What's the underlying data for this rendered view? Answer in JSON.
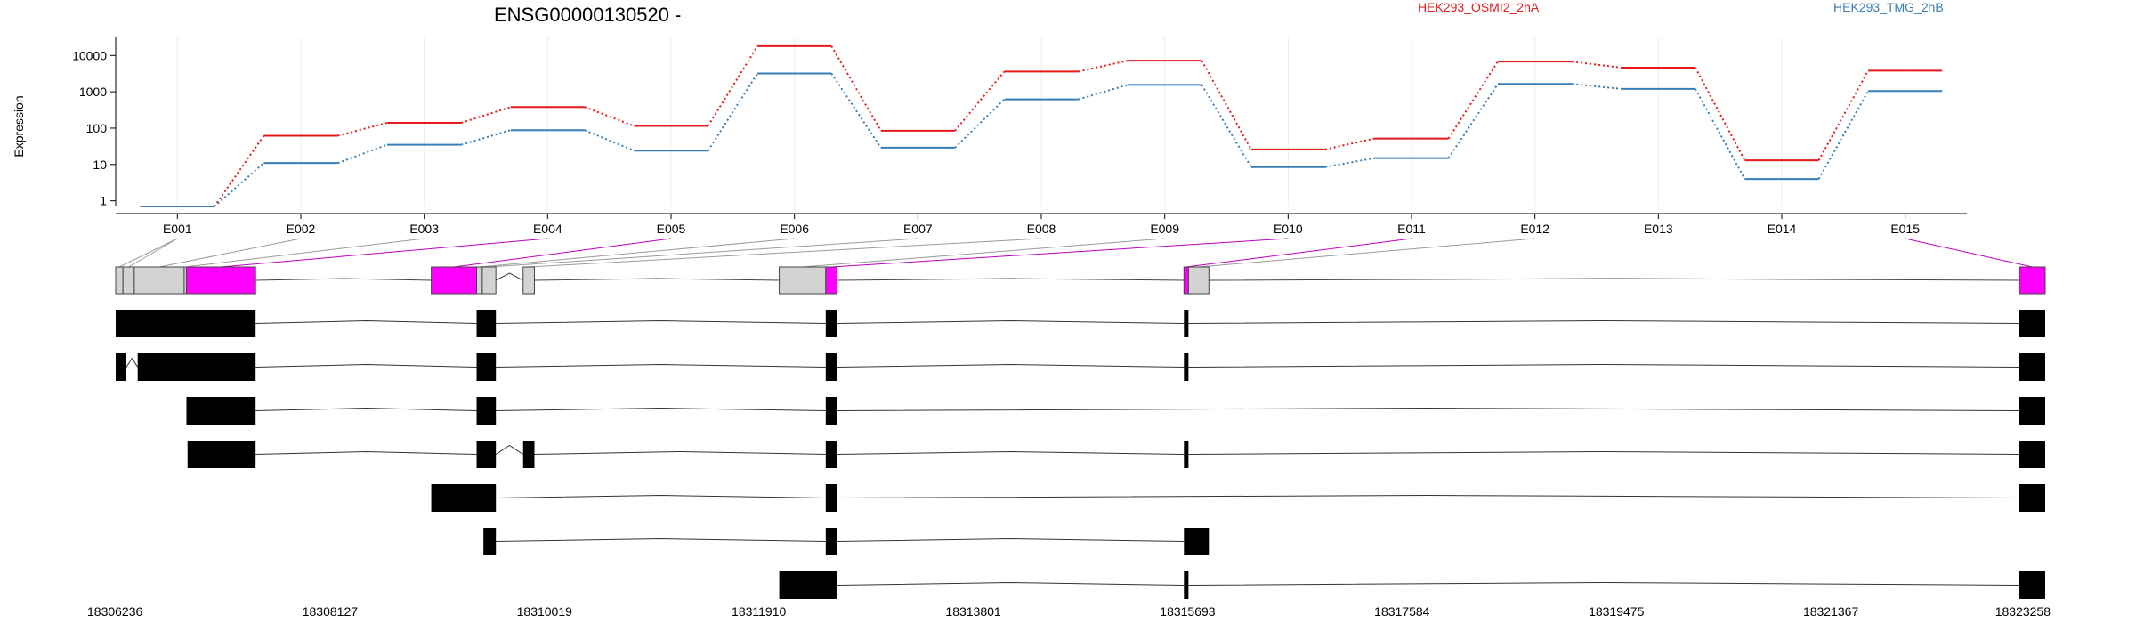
{
  "chart_data": {
    "type": "line",
    "title": "ENSG00000130520 -",
    "ylabel": "Expression",
    "yscale": "log",
    "ylim": [
      0.7,
      25000
    ],
    "yticks": [
      1,
      10,
      100,
      1000,
      10000
    ],
    "ytick_labels": [
      "1",
      "10",
      "100",
      "1000",
      "10000"
    ],
    "grid": "vertical",
    "legend_placement": "top-right",
    "categories": [
      "E001",
      "E002",
      "E003",
      "E004",
      "E005",
      "E006",
      "E007",
      "E008",
      "E009",
      "E010",
      "E011",
      "E012",
      "E013",
      "E014",
      "E015"
    ],
    "series": [
      {
        "name": "HEK293_OSMI2_2hA",
        "color": "#e41a1c",
        "values": [
          0.7,
          62,
          140,
          380,
          115,
          18000,
          85,
          3600,
          7200,
          26,
          52,
          6800,
          4600,
          13,
          3800
        ]
      },
      {
        "name": "HEK293_TMG_2hB",
        "color": "#377eb8",
        "values": [
          0.7,
          11,
          35,
          88,
          24,
          3200,
          29,
          620,
          1550,
          8.5,
          15,
          1650,
          1200,
          4,
          1050
        ]
      }
    ],
    "genome_axis_labels": [
      "18306236",
      "18308127",
      "18310019",
      "18311910",
      "18313801",
      "18315693",
      "18317584",
      "18319475",
      "18321367",
      "18323258"
    ],
    "gene_model": {
      "highlight_color": "#ff00ff",
      "exon_color": "#d3d3d3",
      "transcript_color": "#000000",
      "exon_bins": [
        [
          18306236,
          18306300
        ],
        [
          18306300,
          18306400
        ],
        [
          18306400,
          18306840
        ],
        [
          18306840,
          18306860
        ],
        [
          18306860,
          18307470
        ],
        [
          18309020,
          18309420
        ],
        [
          18309420,
          18309470
        ],
        [
          18309470,
          18309590
        ],
        [
          18309830,
          18309930
        ],
        [
          18312090,
          18312500
        ],
        [
          18312500,
          18312600
        ],
        [
          18315660,
          18315700
        ],
        [
          18315700,
          18315880
        ],
        [
          18323030,
          18323258
        ]
      ],
      "highlighted_exons": [
        4,
        5,
        10,
        11,
        13
      ],
      "exon_link_ids": [
        "E001",
        "E001",
        "E002",
        "E003",
        "E004",
        "E005",
        "E006",
        "E007",
        "E008",
        "E009",
        "E010",
        "E011",
        "E012",
        "E015"
      ],
      "transcripts": [
        [
          [
            18306236,
            18307470
          ],
          [
            18309420,
            18309590
          ],
          [
            18312500,
            18312600
          ],
          [
            18315660,
            18315700
          ],
          [
            18323030,
            18323258
          ]
        ],
        [
          [
            18306236,
            18306330
          ],
          [
            18306430,
            18307470
          ],
          [
            18309420,
            18309590
          ],
          [
            18312500,
            18312600
          ],
          [
            18315660,
            18315700
          ],
          [
            18323030,
            18323258
          ]
        ],
        [
          [
            18306860,
            18307470
          ],
          [
            18309420,
            18309590
          ],
          [
            18312500,
            18312600
          ],
          [
            18323030,
            18323258
          ]
        ],
        [
          [
            18306870,
            18307470
          ],
          [
            18309420,
            18309590
          ],
          [
            18309830,
            18309930
          ],
          [
            18312500,
            18312600
          ],
          [
            18315660,
            18315700
          ],
          [
            18323030,
            18323258
          ]
        ],
        [
          [
            18309020,
            18309590
          ],
          [
            18312500,
            18312600
          ],
          [
            18323030,
            18323258
          ]
        ],
        [
          [
            18309480,
            18309590
          ],
          [
            18312500,
            18312600
          ],
          [
            18315660,
            18315880
          ]
        ],
        [
          [
            18312090,
            18312600
          ],
          [
            18315660,
            18315700
          ],
          [
            18323030,
            18323258
          ]
        ]
      ]
    }
  }
}
